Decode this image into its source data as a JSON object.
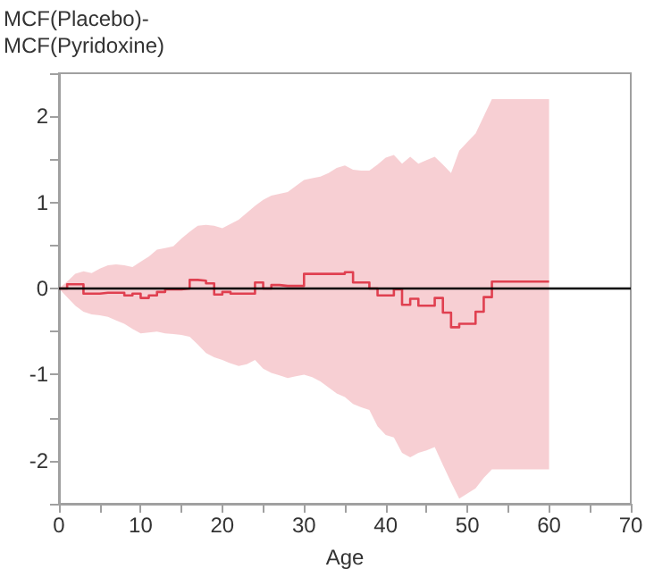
{
  "chart_data": {
    "type": "step",
    "ylabel": "MCF(Placebo)- MCF(Pyridoxine)",
    "xlabel": "Age",
    "x": [
      0,
      1,
      2,
      3,
      4,
      5,
      6,
      7,
      8,
      9,
      10,
      11,
      12,
      13,
      14,
      15,
      16,
      17,
      18,
      19,
      20,
      21,
      22,
      23,
      24,
      25,
      26,
      27,
      28,
      29,
      30,
      31,
      32,
      33,
      34,
      35,
      36,
      37,
      38,
      39,
      40,
      41,
      42,
      43,
      44,
      45,
      46,
      47,
      48,
      49,
      50,
      51,
      52,
      53,
      54,
      55,
      56,
      57,
      58,
      59,
      60
    ],
    "series": [
      {
        "color": "#e04050",
        "values": [
          0,
          0.05,
          0.05,
          -0.06,
          -0.06,
          -0.05,
          -0.05,
          -0.05,
          -0.08,
          -0.06,
          -0.11,
          -0.08,
          -0.04,
          -0.01,
          -0.01,
          0,
          0.1,
          0.09,
          0.06,
          -0.07,
          -0.04,
          -0.06,
          -0.06,
          -0.06,
          0.07,
          0,
          0.04,
          0.03,
          0.03,
          0.03,
          0.17,
          0.17,
          0.17,
          0.17,
          0.17,
          0.19,
          0.07,
          0.07,
          0,
          -0.08,
          -0.08,
          -0.01,
          -0.19,
          -0.12,
          -0.2,
          -0.2,
          -0.11,
          -0.28,
          -0.45,
          -0.41,
          -0.41,
          -0.27,
          -0.1,
          0.08,
          0.08,
          0.08,
          0.08,
          0.08,
          0.08,
          0.08,
          0.08
        ],
        "upper": [
          0,
          0.08,
          0.17,
          0.2,
          0.18,
          0.23,
          0.27,
          0.28,
          0.27,
          0.25,
          0.31,
          0.37,
          0.45,
          0.47,
          0.49,
          0.58,
          0.66,
          0.73,
          0.74,
          0.73,
          0.7,
          0.75,
          0.8,
          0.88,
          0.96,
          1.03,
          1.08,
          1.1,
          1.12,
          1.19,
          1.26,
          1.28,
          1.3,
          1.34,
          1.4,
          1.43,
          1.38,
          1.37,
          1.37,
          1.44,
          1.52,
          1.55,
          1.45,
          1.53,
          1.45,
          1.49,
          1.53,
          1.44,
          1.34,
          1.6,
          1.7,
          1.8,
          2.0,
          2.2,
          2.2,
          2.2,
          2.2,
          2.2,
          2.2,
          2.2,
          2.2
        ],
        "lower": [
          0,
          -0.1,
          -0.2,
          -0.27,
          -0.3,
          -0.31,
          -0.33,
          -0.37,
          -0.41,
          -0.47,
          -0.52,
          -0.51,
          -0.5,
          -0.52,
          -0.53,
          -0.54,
          -0.56,
          -0.65,
          -0.75,
          -0.8,
          -0.83,
          -0.87,
          -0.9,
          -0.88,
          -0.83,
          -0.93,
          -0.98,
          -1.01,
          -1.04,
          -1.02,
          -1,
          -1.03,
          -1.08,
          -1.15,
          -1.22,
          -1.26,
          -1.34,
          -1.38,
          -1.41,
          -1.6,
          -1.7,
          -1.73,
          -1.91,
          -1.96,
          -1.91,
          -1.88,
          -1.84,
          -2.05,
          -2.25,
          -2.44,
          -2.38,
          -2.32,
          -2.2,
          -2.1,
          -2.1,
          -2.1,
          -2.1,
          -2.1,
          -2.1,
          -2.1,
          -2.1
        ]
      }
    ],
    "xlim": [
      0,
      70
    ],
    "xticks": [
      0,
      {
        "value": 5,
        "label": null
      },
      10,
      {
        "value": 15,
        "label": null
      },
      20,
      {
        "value": 25,
        "label": null
      },
      30,
      {
        "value": 35,
        "label": null
      },
      40,
      {
        "value": 45,
        "label": null
      },
      50,
      {
        "value": 55,
        "label": null
      },
      60,
      {
        "value": 65,
        "label": null
      },
      70
    ],
    "ylim": [
      -2.5,
      2.5
    ],
    "yticks": [
      {
        "value": -2.5,
        "label": null
      },
      -2,
      {
        "value": -1.5,
        "label": null
      },
      -1,
      {
        "value": -0.5,
        "label": null
      },
      0,
      {
        "value": 0.5,
        "label": null
      },
      1,
      {
        "value": 1.5,
        "label": null
      },
      2,
      {
        "value": 2.5,
        "label": null
      }
    ],
    "ref_lines": [
      {
        "axis": "y",
        "value": 0,
        "color": "#000000"
      }
    ],
    "grid": false,
    "marker": "none",
    "line_style": "solid"
  }
}
